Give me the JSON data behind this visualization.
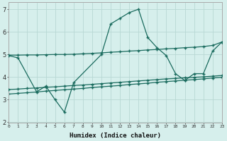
{
  "xlabel": "Humidex (Indice chaleur)",
  "bg_color": "#d6efec",
  "line_color": "#1a6b5e",
  "grid_color": "#b8d8d4",
  "xlim": [
    0,
    23
  ],
  "ylim": [
    2,
    7.3
  ],
  "xticks": [
    0,
    1,
    2,
    3,
    4,
    5,
    6,
    7,
    8,
    9,
    10,
    11,
    12,
    13,
    14,
    15,
    16,
    17,
    18,
    19,
    20,
    21,
    22,
    23
  ],
  "yticks": [
    2,
    3,
    4,
    5,
    6,
    7
  ],
  "line1_x": [
    0,
    1,
    3,
    4,
    5,
    6,
    7,
    10,
    11,
    12,
    13,
    14,
    15,
    16,
    17,
    18,
    19,
    20,
    21,
    22,
    23
  ],
  "line1_y": [
    4.95,
    4.85,
    3.35,
    3.6,
    3.0,
    2.45,
    3.75,
    5.0,
    6.35,
    6.6,
    6.85,
    7.0,
    5.75,
    5.3,
    4.95,
    4.15,
    3.85,
    4.15,
    4.15,
    5.15,
    5.55
  ],
  "line2_x": [
    0,
    1,
    2,
    3,
    4,
    5,
    6,
    7,
    8,
    9,
    10,
    11,
    12,
    13,
    14,
    15,
    16,
    17,
    18,
    19,
    20,
    21,
    22,
    23
  ],
  "line2_y": [
    4.97,
    4.97,
    4.98,
    4.98,
    4.99,
    5.0,
    5.0,
    5.01,
    5.03,
    5.05,
    5.07,
    5.1,
    5.12,
    5.15,
    5.17,
    5.2,
    5.22,
    5.25,
    5.27,
    5.3,
    5.32,
    5.35,
    5.4,
    5.55
  ],
  "line3_x": [
    0,
    1,
    2,
    3,
    4,
    5,
    6,
    7,
    8,
    9,
    10,
    11,
    12,
    13,
    14,
    15,
    16,
    17,
    18,
    19,
    20,
    21,
    22,
    23
  ],
  "line3_y": [
    3.45,
    3.47,
    3.5,
    3.52,
    3.55,
    3.57,
    3.6,
    3.63,
    3.65,
    3.68,
    3.71,
    3.74,
    3.77,
    3.8,
    3.83,
    3.86,
    3.89,
    3.92,
    3.94,
    3.97,
    3.99,
    4.01,
    4.04,
    4.07
  ],
  "line4_x": [
    0,
    1,
    2,
    3,
    4,
    5,
    6,
    7,
    8,
    9,
    10,
    11,
    12,
    13,
    14,
    15,
    16,
    17,
    18,
    19,
    20,
    21,
    22,
    23
  ],
  "line4_y": [
    3.25,
    3.28,
    3.31,
    3.34,
    3.38,
    3.41,
    3.44,
    3.47,
    3.5,
    3.54,
    3.57,
    3.6,
    3.63,
    3.67,
    3.7,
    3.73,
    3.77,
    3.8,
    3.83,
    3.86,
    3.89,
    3.92,
    3.96,
    3.99
  ]
}
